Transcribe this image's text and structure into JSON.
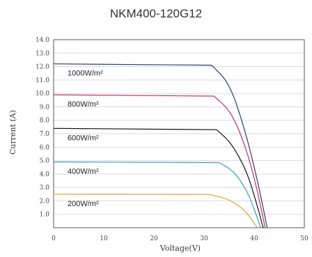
{
  "chart_data": {
    "type": "line",
    "title": "NKM400-120G12",
    "xlabel": "Voltage(V)",
    "ylabel": "Current (A)",
    "xlim": [
      0,
      50
    ],
    "ylim": [
      0,
      14
    ],
    "x_ticks": [
      "0",
      "10",
      "20",
      "30",
      "40",
      "50"
    ],
    "y_ticks": [
      "1.0",
      "2.0",
      "3.0",
      "4.0",
      "5.0",
      "6.0",
      "7.0",
      "8.0",
      "9.0",
      "10.0",
      "11.0",
      "12.0",
      "13.0",
      "14.0"
    ],
    "grid": "horizontal",
    "series": [
      {
        "name": "1000W/m²",
        "color": "#2e3a6e",
        "isc": 12.2,
        "voc": 42.6,
        "knee_v": 31.5,
        "points": [
          [
            0,
            12.2
          ],
          [
            31.5,
            12.1
          ],
          [
            35,
            10.8
          ],
          [
            38,
            7.5
          ],
          [
            40.5,
            3.8
          ],
          [
            42.6,
            0
          ]
        ]
      },
      {
        "name": "800W/m²",
        "color": "#c0306e",
        "isc": 9.9,
        "voc": 42.2,
        "knee_v": 32,
        "points": [
          [
            0,
            9.9
          ],
          [
            32,
            9.8
          ],
          [
            35.5,
            8.6
          ],
          [
            38.5,
            5.8
          ],
          [
            40.5,
            3.0
          ],
          [
            42.2,
            0
          ]
        ]
      },
      {
        "name": "600W/m²",
        "color": "#111111",
        "isc": 7.4,
        "voc": 41.8,
        "knee_v": 32.5,
        "points": [
          [
            0,
            7.4
          ],
          [
            32.5,
            7.3
          ],
          [
            35.5,
            6.3
          ],
          [
            38.5,
            4.2
          ],
          [
            40.2,
            2.2
          ],
          [
            41.8,
            0
          ]
        ]
      },
      {
        "name": "400W/m²",
        "color": "#3b9ec4",
        "isc": 4.9,
        "voc": 41.3,
        "knee_v": 33,
        "points": [
          [
            0,
            4.9
          ],
          [
            33,
            4.85
          ],
          [
            36,
            4.2
          ],
          [
            38.5,
            2.8
          ],
          [
            40,
            1.4
          ],
          [
            41.3,
            0
          ]
        ]
      },
      {
        "name": "200W/m²",
        "color": "#e0a030",
        "isc": 2.5,
        "voc": 40.6,
        "knee_v": 31,
        "points": [
          [
            0,
            2.5
          ],
          [
            31,
            2.48
          ],
          [
            34.5,
            2.2
          ],
          [
            37.5,
            1.5
          ],
          [
            39.2,
            0.8
          ],
          [
            40.6,
            0
          ]
        ]
      }
    ]
  }
}
